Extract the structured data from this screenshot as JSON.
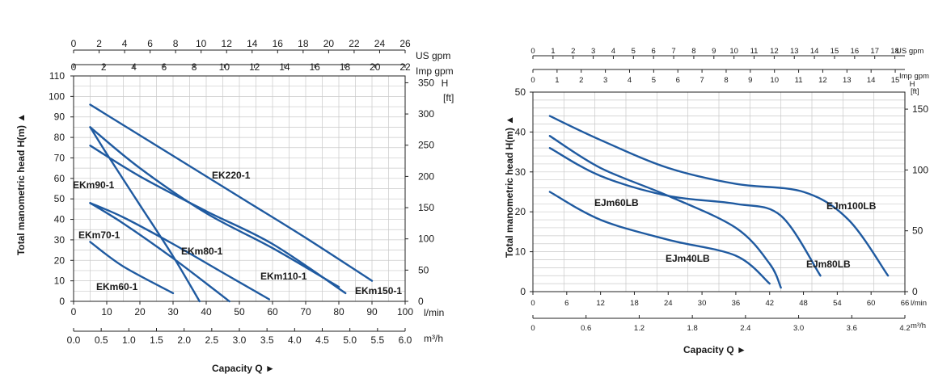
{
  "chart_data": [
    {
      "type": "line",
      "title": "",
      "xlabel": "Capacity Q",
      "ylabel": "Total manometric head H(m)",
      "x_unit": "l/min",
      "ylim": [
        0,
        110
      ],
      "xlim": [
        0,
        100
      ],
      "grid": true,
      "colors": {
        "curves": "#1f5aa0"
      },
      "axes": {
        "y_ticks": [
          "0",
          "10",
          "20",
          "30",
          "40",
          "50",
          "60",
          "70",
          "80",
          "90",
          "100",
          "110"
        ],
        "x_ticks": [
          "0",
          "10",
          "20",
          "30",
          "40",
          "50",
          "60",
          "70",
          "80",
          "90",
          "100"
        ],
        "x_unit": "l/min",
        "m3h_ticks": [
          "0.0",
          "0.5",
          "1.0",
          "1.5",
          "2.0",
          "2.5",
          "3.0",
          "3.5",
          "4.0",
          "4.5",
          "5.0",
          "5.5",
          "6.0"
        ],
        "m3h_unit": "m³/h",
        "imp_ticks": [
          "0",
          "2",
          "4",
          "6",
          "8",
          "10",
          "12",
          "14",
          "16",
          "18",
          "20",
          "22"
        ],
        "imp_unit": "Imp gpm",
        "us_ticks": [
          "0",
          "2",
          "4",
          "6",
          "8",
          "10",
          "12",
          "14",
          "16",
          "18",
          "20",
          "22",
          "24",
          "26"
        ],
        "us_unit": "US gpm",
        "ft_ticks": [
          "0",
          "50",
          "100",
          "150",
          "200",
          "250",
          "300",
          "350"
        ],
        "ft_label": "H",
        "ft_unit": "[ft]"
      },
      "series": [
        {
          "name": "EK220-1",
          "x": [
            5,
            15,
            30,
            50,
            70,
            90
          ],
          "y": [
            96,
            86,
            71,
            51,
            31,
            10
          ]
        },
        {
          "name": "EKm90-1",
          "x": [
            5,
            10,
            20,
            30,
            38
          ],
          "y": [
            85,
            72,
            47,
            22,
            0
          ]
        },
        {
          "name": "EKm70-1",
          "x": [
            5,
            15,
            30,
            47
          ],
          "y": [
            48,
            38,
            21,
            0
          ]
        },
        {
          "name": "EKm60-1",
          "x": [
            5,
            15,
            30
          ],
          "y": [
            29,
            17,
            4
          ]
        },
        {
          "name": "EKm80-1",
          "x": [
            5,
            15,
            30,
            45,
            59
          ],
          "y": [
            48,
            41,
            28,
            14,
            1
          ]
        },
        {
          "name": "EKm110-1",
          "x": [
            5,
            20,
            40,
            60,
            80
          ],
          "y": [
            85,
            65,
            43,
            26,
            7
          ]
        },
        {
          "name": "EKm150-1",
          "x": [
            5,
            20,
            40,
            60,
            82
          ],
          "y": [
            76,
            61,
            44,
            28,
            4
          ]
        }
      ]
    },
    {
      "type": "line",
      "title": "",
      "xlabel": "Capacity Q",
      "ylabel": "Total manometric head H(m)",
      "x_unit": "l/min",
      "ylim": [
        0,
        50
      ],
      "xlim": [
        0,
        66
      ],
      "grid": true,
      "colors": {
        "curves": "#1f5aa0"
      },
      "axes": {
        "y_ticks": [
          "0",
          "10",
          "20",
          "30",
          "40",
          "50"
        ],
        "x_ticks": [
          "0",
          "6",
          "12",
          "18",
          "24",
          "30",
          "36",
          "42",
          "48",
          "54",
          "60",
          "66"
        ],
        "x_unit": "l/min",
        "m3h_ticks": [
          "0",
          "0.6",
          "1.2",
          "1.8",
          "2.4",
          "3.0",
          "3.6",
          "4.2"
        ],
        "m3h_unit": "m³/h",
        "imp_ticks": [
          "0",
          "1",
          "2",
          "3",
          "4",
          "5",
          "6",
          "7",
          "8",
          "9",
          "10",
          "11",
          "12",
          "13",
          "14",
          "15"
        ],
        "imp_unit": "Imp gpm",
        "us_ticks": [
          "0",
          "1",
          "2",
          "3",
          "4",
          "5",
          "6",
          "7",
          "8",
          "9",
          "10",
          "11",
          "12",
          "13",
          "14",
          "15",
          "16",
          "17",
          "18"
        ],
        "us_unit": "US gpm",
        "ft_ticks": [
          "0",
          "50",
          "100",
          "150"
        ],
        "ft_label": "H",
        "ft_unit": "[ft]"
      },
      "series": [
        {
          "name": "EJm100LB",
          "x": [
            3,
            12,
            24,
            36,
            48,
            56,
            63
          ],
          "y": [
            44,
            38,
            31,
            27,
            25,
            18,
            4
          ]
        },
        {
          "name": "EJm60LB",
          "x": [
            3,
            12,
            24,
            36,
            42,
            44
          ],
          "y": [
            39,
            31,
            24,
            16,
            7,
            1
          ]
        },
        {
          "name": "EJm80LB",
          "x": [
            3,
            12,
            24,
            36,
            44,
            51
          ],
          "y": [
            36,
            29,
            24,
            22,
            19,
            4
          ]
        },
        {
          "name": "EJm40LB",
          "x": [
            3,
            12,
            24,
            36,
            42
          ],
          "y": [
            25,
            18,
            13,
            9,
            2
          ]
        }
      ]
    }
  ]
}
